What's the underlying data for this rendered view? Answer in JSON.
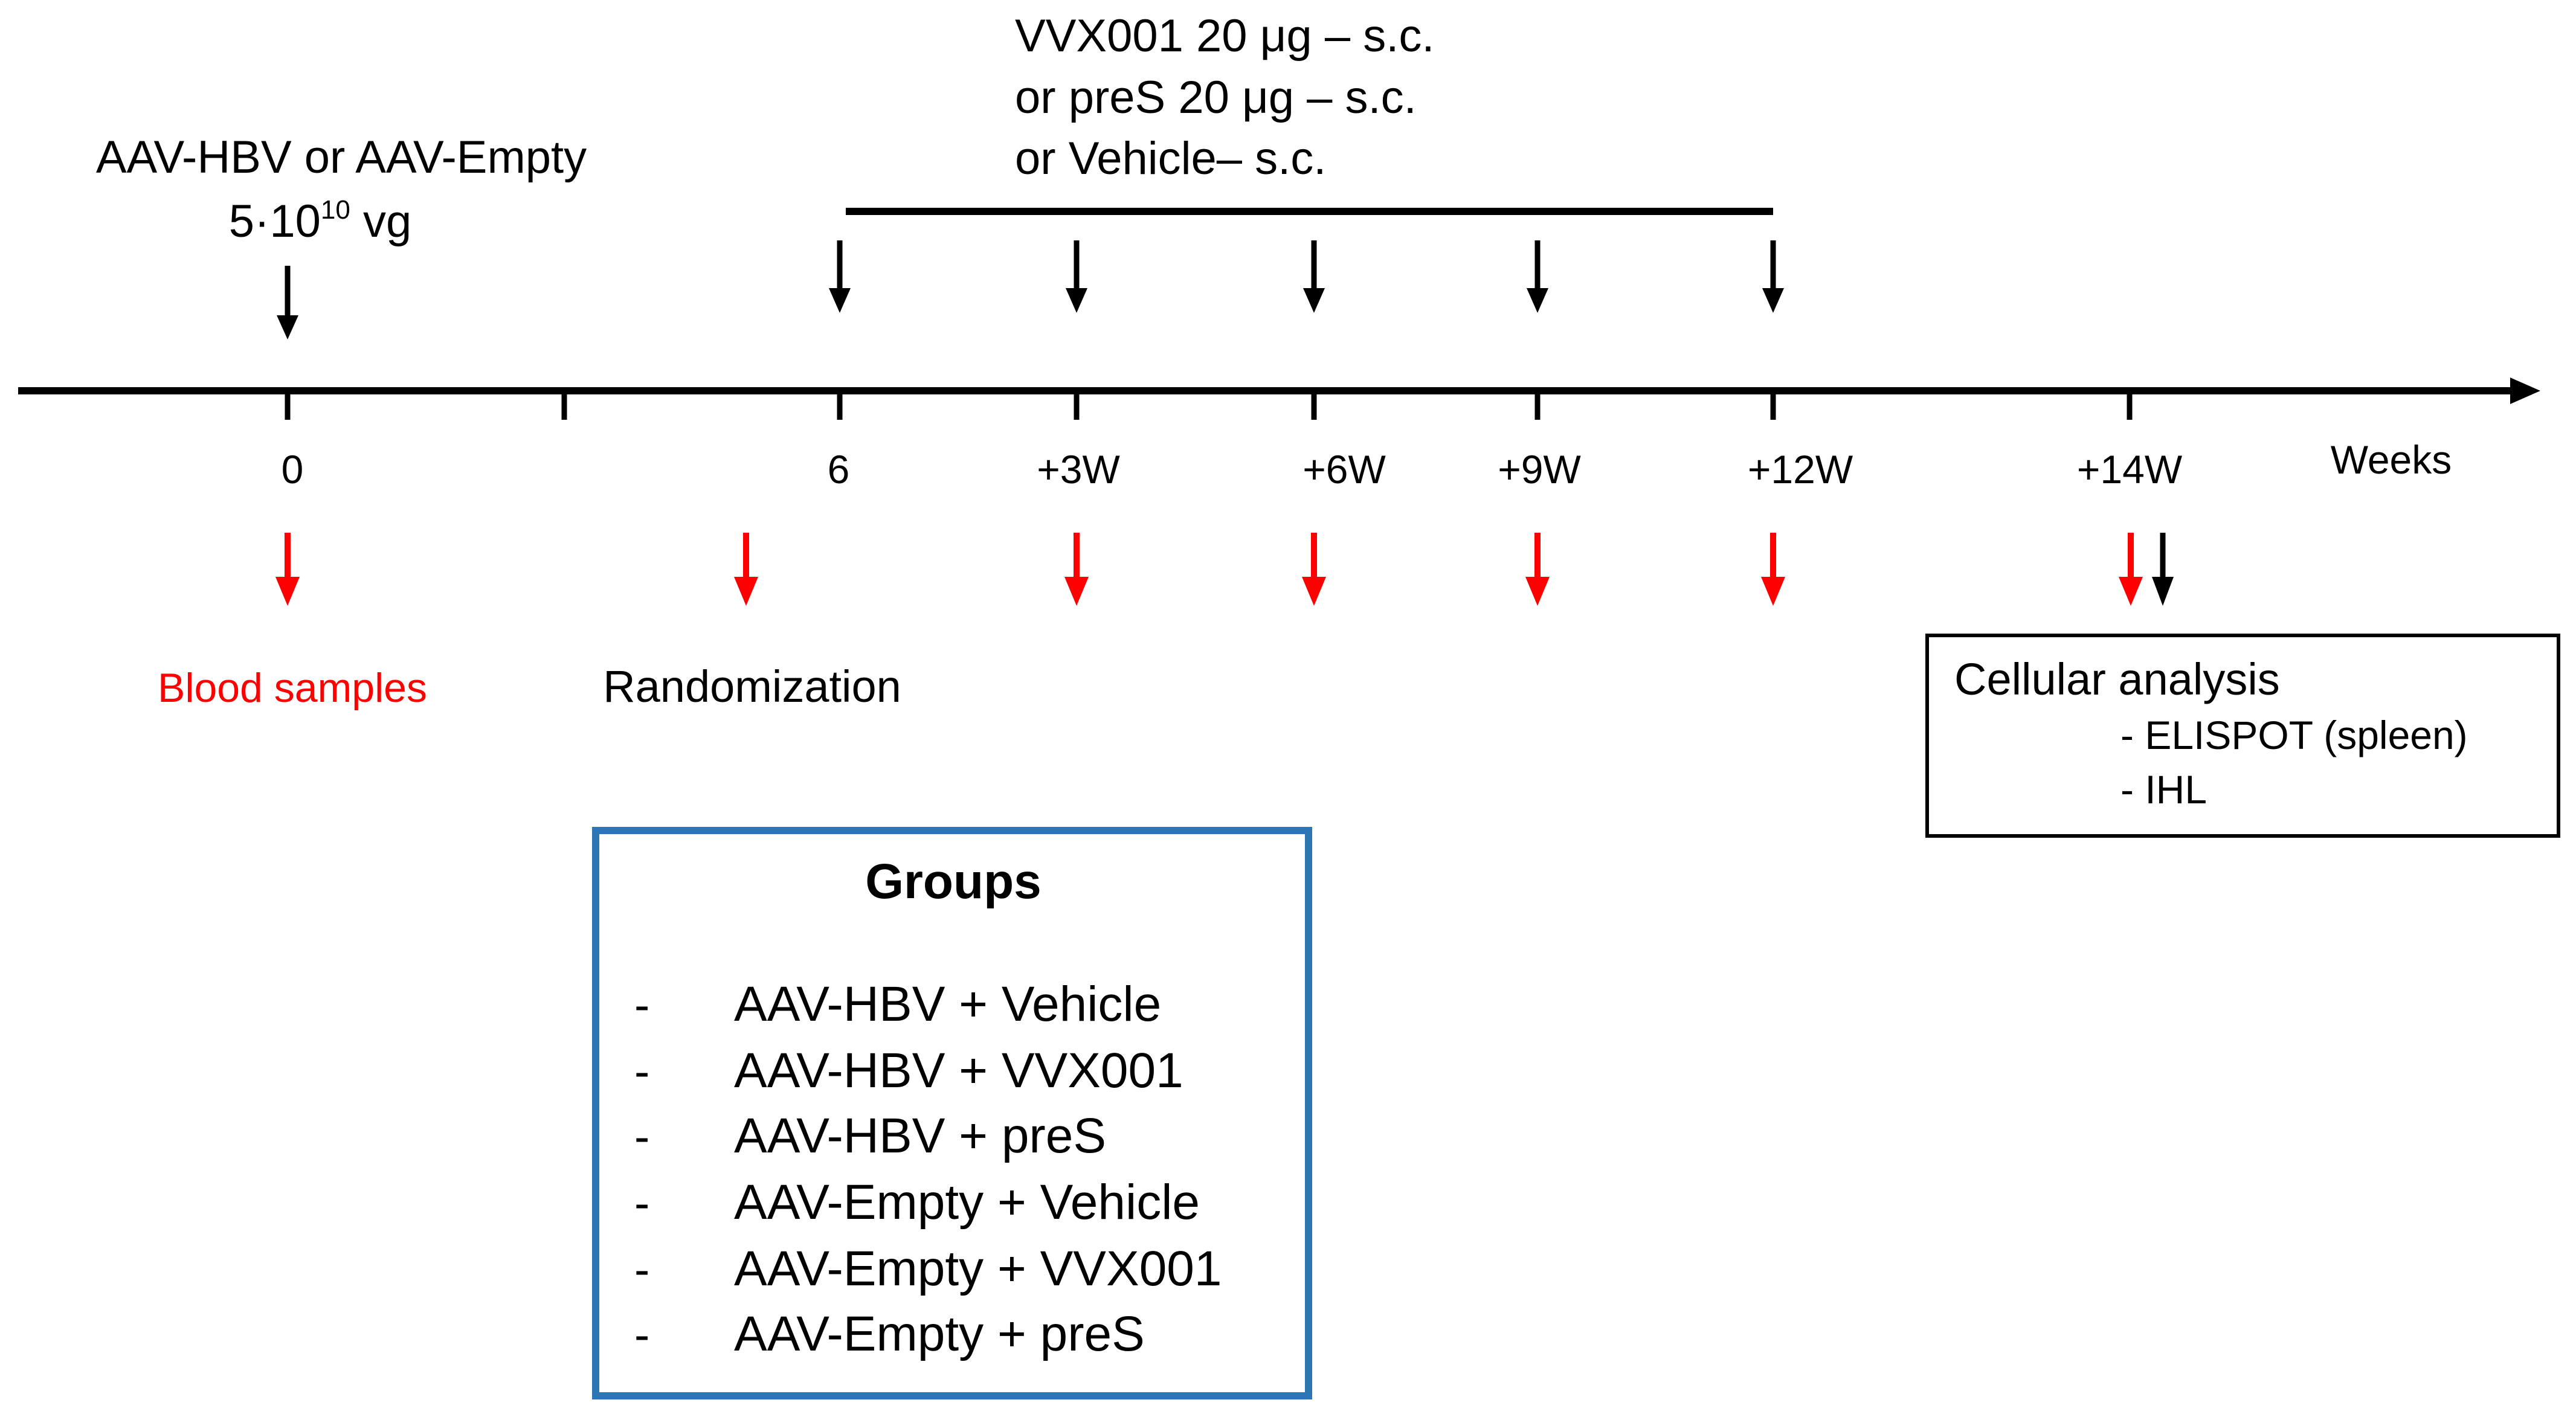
{
  "injection": {
    "line1": "AAV-HBV or AAV-Empty",
    "dose_base": "5·10",
    "dose_exponent": "10",
    "dose_unit": " vg"
  },
  "vaccination": {
    "line1": "VVX001 20 μg – s.c.",
    "line2": "or preS 20 μg – s.c.",
    "line3": "or Vehicle– s.c."
  },
  "timeline": {
    "ticks": [
      "0",
      "6",
      "+3W",
      "+6W",
      "+9W",
      "+12W",
      "+14W"
    ],
    "axis_label": "Weeks"
  },
  "legend": {
    "blood_samples": "Blood samples",
    "randomization": "Randomization"
  },
  "cellular_analysis": {
    "title": "Cellular analysis",
    "items": [
      "- ELISPOT (spleen)",
      "- IHL"
    ]
  },
  "groups": {
    "title": "Groups",
    "bullet": "-",
    "items": [
      "AAV-HBV  + Vehicle",
      "AAV-HBV + VVX001",
      "AAV-HBV + preS",
      "AAV-Empty + Vehicle",
      "AAV-Empty + VVX001",
      "AAV-Empty + preS"
    ]
  },
  "colors": {
    "line": "#000000",
    "blood_arrow": "#ff0000",
    "groups_border": "#2e75b6"
  }
}
